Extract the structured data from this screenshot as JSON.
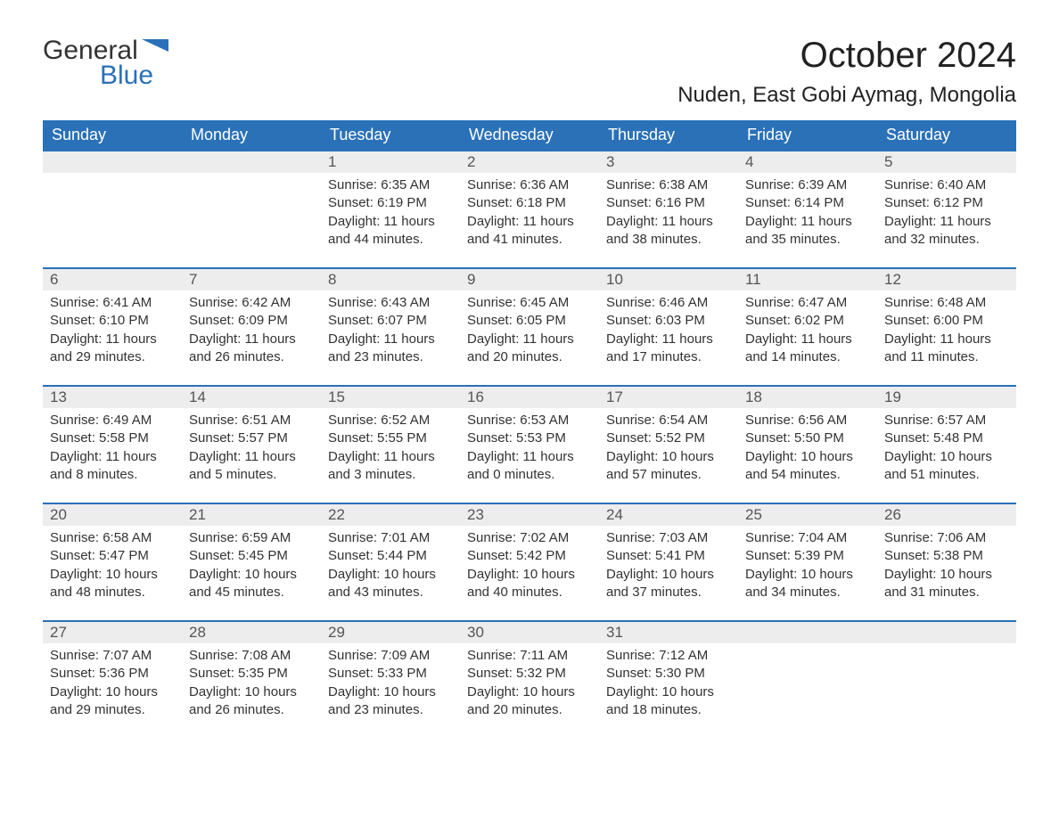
{
  "logo": {
    "general": "General",
    "blue": "Blue",
    "flag_color": "#2a71b8"
  },
  "title": {
    "month": "October 2024",
    "location": "Nuden, East Gobi Aymag, Mongolia"
  },
  "colors": {
    "header_bg": "#2a71b8",
    "header_text": "#ffffff",
    "daynum_bg": "#ededed",
    "daynum_text": "#555555",
    "body_text": "#333333",
    "row_border": "#2a71b8"
  },
  "fonts": {
    "title_month_size": 40,
    "title_location_size": 24,
    "header_size": 18,
    "daynum_size": 17,
    "body_size": 15
  },
  "calendar": {
    "type": "table",
    "columns": [
      "Sunday",
      "Monday",
      "Tuesday",
      "Wednesday",
      "Thursday",
      "Friday",
      "Saturday"
    ],
    "weeks": [
      [
        null,
        null,
        {
          "d": "1",
          "sr": "Sunrise: 6:35 AM",
          "ss": "Sunset: 6:19 PM",
          "dl": "Daylight: 11 hours and 44 minutes."
        },
        {
          "d": "2",
          "sr": "Sunrise: 6:36 AM",
          "ss": "Sunset: 6:18 PM",
          "dl": "Daylight: 11 hours and 41 minutes."
        },
        {
          "d": "3",
          "sr": "Sunrise: 6:38 AM",
          "ss": "Sunset: 6:16 PM",
          "dl": "Daylight: 11 hours and 38 minutes."
        },
        {
          "d": "4",
          "sr": "Sunrise: 6:39 AM",
          "ss": "Sunset: 6:14 PM",
          "dl": "Daylight: 11 hours and 35 minutes."
        },
        {
          "d": "5",
          "sr": "Sunrise: 6:40 AM",
          "ss": "Sunset: 6:12 PM",
          "dl": "Daylight: 11 hours and 32 minutes."
        }
      ],
      [
        {
          "d": "6",
          "sr": "Sunrise: 6:41 AM",
          "ss": "Sunset: 6:10 PM",
          "dl": "Daylight: 11 hours and 29 minutes."
        },
        {
          "d": "7",
          "sr": "Sunrise: 6:42 AM",
          "ss": "Sunset: 6:09 PM",
          "dl": "Daylight: 11 hours and 26 minutes."
        },
        {
          "d": "8",
          "sr": "Sunrise: 6:43 AM",
          "ss": "Sunset: 6:07 PM",
          "dl": "Daylight: 11 hours and 23 minutes."
        },
        {
          "d": "9",
          "sr": "Sunrise: 6:45 AM",
          "ss": "Sunset: 6:05 PM",
          "dl": "Daylight: 11 hours and 20 minutes."
        },
        {
          "d": "10",
          "sr": "Sunrise: 6:46 AM",
          "ss": "Sunset: 6:03 PM",
          "dl": "Daylight: 11 hours and 17 minutes."
        },
        {
          "d": "11",
          "sr": "Sunrise: 6:47 AM",
          "ss": "Sunset: 6:02 PM",
          "dl": "Daylight: 11 hours and 14 minutes."
        },
        {
          "d": "12",
          "sr": "Sunrise: 6:48 AM",
          "ss": "Sunset: 6:00 PM",
          "dl": "Daylight: 11 hours and 11 minutes."
        }
      ],
      [
        {
          "d": "13",
          "sr": "Sunrise: 6:49 AM",
          "ss": "Sunset: 5:58 PM",
          "dl": "Daylight: 11 hours and 8 minutes."
        },
        {
          "d": "14",
          "sr": "Sunrise: 6:51 AM",
          "ss": "Sunset: 5:57 PM",
          "dl": "Daylight: 11 hours and 5 minutes."
        },
        {
          "d": "15",
          "sr": "Sunrise: 6:52 AM",
          "ss": "Sunset: 5:55 PM",
          "dl": "Daylight: 11 hours and 3 minutes."
        },
        {
          "d": "16",
          "sr": "Sunrise: 6:53 AM",
          "ss": "Sunset: 5:53 PM",
          "dl": "Daylight: 11 hours and 0 minutes."
        },
        {
          "d": "17",
          "sr": "Sunrise: 6:54 AM",
          "ss": "Sunset: 5:52 PM",
          "dl": "Daylight: 10 hours and 57 minutes."
        },
        {
          "d": "18",
          "sr": "Sunrise: 6:56 AM",
          "ss": "Sunset: 5:50 PM",
          "dl": "Daylight: 10 hours and 54 minutes."
        },
        {
          "d": "19",
          "sr": "Sunrise: 6:57 AM",
          "ss": "Sunset: 5:48 PM",
          "dl": "Daylight: 10 hours and 51 minutes."
        }
      ],
      [
        {
          "d": "20",
          "sr": "Sunrise: 6:58 AM",
          "ss": "Sunset: 5:47 PM",
          "dl": "Daylight: 10 hours and 48 minutes."
        },
        {
          "d": "21",
          "sr": "Sunrise: 6:59 AM",
          "ss": "Sunset: 5:45 PM",
          "dl": "Daylight: 10 hours and 45 minutes."
        },
        {
          "d": "22",
          "sr": "Sunrise: 7:01 AM",
          "ss": "Sunset: 5:44 PM",
          "dl": "Daylight: 10 hours and 43 minutes."
        },
        {
          "d": "23",
          "sr": "Sunrise: 7:02 AM",
          "ss": "Sunset: 5:42 PM",
          "dl": "Daylight: 10 hours and 40 minutes."
        },
        {
          "d": "24",
          "sr": "Sunrise: 7:03 AM",
          "ss": "Sunset: 5:41 PM",
          "dl": "Daylight: 10 hours and 37 minutes."
        },
        {
          "d": "25",
          "sr": "Sunrise: 7:04 AM",
          "ss": "Sunset: 5:39 PM",
          "dl": "Daylight: 10 hours and 34 minutes."
        },
        {
          "d": "26",
          "sr": "Sunrise: 7:06 AM",
          "ss": "Sunset: 5:38 PM",
          "dl": "Daylight: 10 hours and 31 minutes."
        }
      ],
      [
        {
          "d": "27",
          "sr": "Sunrise: 7:07 AM",
          "ss": "Sunset: 5:36 PM",
          "dl": "Daylight: 10 hours and 29 minutes."
        },
        {
          "d": "28",
          "sr": "Sunrise: 7:08 AM",
          "ss": "Sunset: 5:35 PM",
          "dl": "Daylight: 10 hours and 26 minutes."
        },
        {
          "d": "29",
          "sr": "Sunrise: 7:09 AM",
          "ss": "Sunset: 5:33 PM",
          "dl": "Daylight: 10 hours and 23 minutes."
        },
        {
          "d": "30",
          "sr": "Sunrise: 7:11 AM",
          "ss": "Sunset: 5:32 PM",
          "dl": "Daylight: 10 hours and 20 minutes."
        },
        {
          "d": "31",
          "sr": "Sunrise: 7:12 AM",
          "ss": "Sunset: 5:30 PM",
          "dl": "Daylight: 10 hours and 18 minutes."
        },
        null,
        null
      ]
    ]
  }
}
